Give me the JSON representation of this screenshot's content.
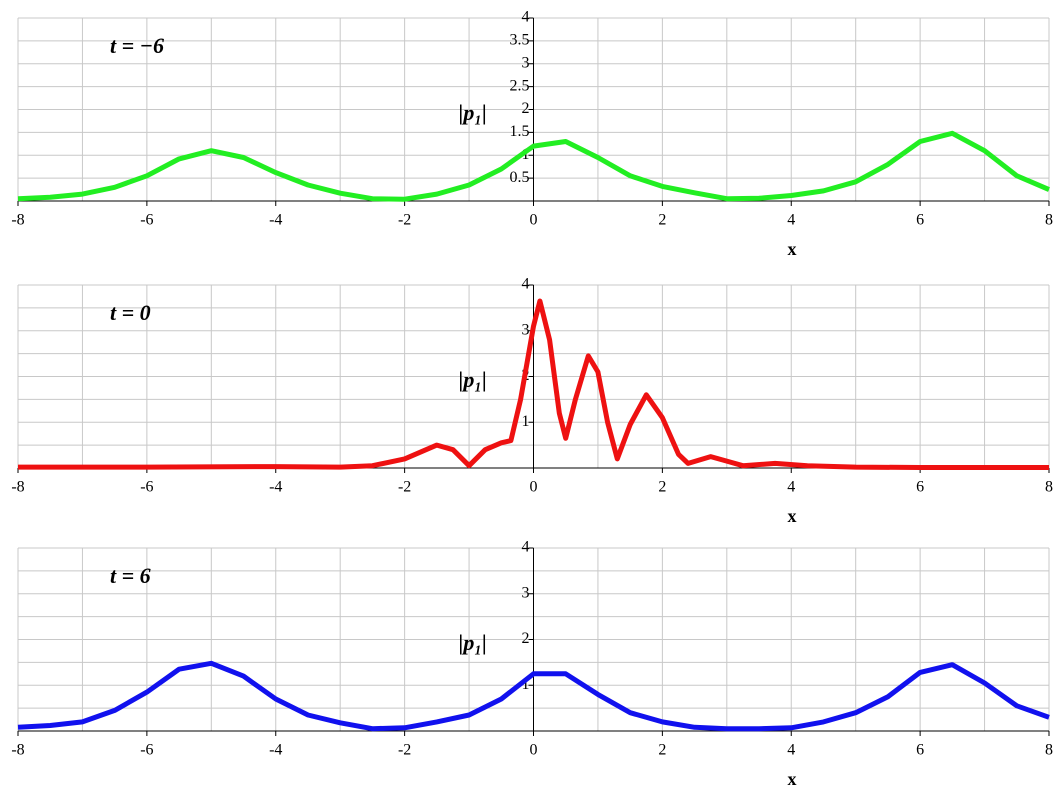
{
  "chart_data": [
    {
      "type": "line",
      "annotation": "t = −6",
      "ylabel": "|p₁|",
      "xlabel": "x",
      "color": "#22ee22",
      "xlim": [
        -8,
        8
      ],
      "ylim": [
        0,
        4
      ],
      "xticks": [
        -8,
        -6,
        -4,
        -2,
        0,
        2,
        4,
        6,
        8
      ],
      "yticks": [
        0.5,
        1,
        1.5,
        2,
        2.5,
        3,
        3.5,
        4
      ],
      "xgrid": [
        -8,
        -7,
        -6,
        -5,
        -4,
        -3,
        -2,
        -1,
        0,
        1,
        2,
        3,
        4,
        5,
        6,
        7,
        8
      ],
      "ygrid": [
        0.5,
        1,
        1.5,
        2,
        2.5,
        3,
        3.5,
        4
      ],
      "x": [
        -8,
        -7.5,
        -7,
        -6.5,
        -6,
        -5.5,
        -5,
        -4.5,
        -4,
        -3.5,
        -3,
        -2.5,
        -2,
        -1.5,
        -1,
        -0.5,
        0,
        0.5,
        1,
        1.5,
        2,
        2.5,
        3,
        3.5,
        4,
        4.5,
        5,
        5.5,
        6,
        6.5,
        7,
        7.5,
        8
      ],
      "values": [
        0.05,
        0.08,
        0.15,
        0.3,
        0.55,
        0.92,
        1.1,
        0.95,
        0.62,
        0.35,
        0.17,
        0.05,
        0.04,
        0.15,
        0.35,
        0.7,
        1.2,
        1.3,
        0.95,
        0.55,
        0.32,
        0.18,
        0.05,
        0.06,
        0.12,
        0.22,
        0.42,
        0.8,
        1.3,
        1.48,
        1.1,
        0.55,
        0.25
      ]
    },
    {
      "type": "line",
      "annotation": "t = 0",
      "ylabel": "|p₁|",
      "xlabel": "x",
      "color": "#ee1111",
      "xlim": [
        -8,
        8
      ],
      "ylim": [
        0,
        4
      ],
      "xticks": [
        -8,
        -6,
        -4,
        -2,
        0,
        2,
        4,
        6,
        8
      ],
      "yticks": [
        1,
        2,
        3,
        4
      ],
      "xgrid": [
        -8,
        -7,
        -6,
        -5,
        -4,
        -3,
        -2,
        -1,
        0,
        1,
        2,
        3,
        4,
        5,
        6,
        7,
        8
      ],
      "ygrid": [
        0.5,
        1,
        1.5,
        2,
        2.5,
        3,
        3.5,
        4
      ],
      "x": [
        -8,
        -6,
        -4,
        -3,
        -2.5,
        -2,
        -1.5,
        -1.25,
        -1,
        -0.75,
        -0.5,
        -0.35,
        -0.2,
        0,
        0.1,
        0.25,
        0.4,
        0.5,
        0.65,
        0.85,
        1,
        1.15,
        1.3,
        1.5,
        1.75,
        2,
        2.25,
        2.4,
        2.75,
        3,
        3.25,
        3.75,
        4.25,
        5,
        6,
        8
      ],
      "values": [
        0.02,
        0.02,
        0.03,
        0.02,
        0.05,
        0.2,
        0.5,
        0.4,
        0.05,
        0.4,
        0.55,
        0.6,
        1.5,
        3.1,
        3.65,
        2.8,
        1.2,
        0.65,
        1.5,
        2.45,
        2.1,
        1.0,
        0.2,
        0.95,
        1.6,
        1.1,
        0.3,
        0.1,
        0.25,
        0.15,
        0.05,
        0.1,
        0.05,
        0.02,
        0.01,
        0.01
      ]
    },
    {
      "type": "line",
      "annotation": "t = 6",
      "ylabel": "|p₁|",
      "xlabel": "x",
      "color": "#1111ee",
      "xlim": [
        -8,
        8
      ],
      "ylim": [
        0,
        4
      ],
      "xticks": [
        -8,
        -6,
        -4,
        -2,
        0,
        2,
        4,
        6,
        8
      ],
      "yticks": [
        1,
        2,
        3,
        4
      ],
      "xgrid": [
        -8,
        -7,
        -6,
        -5,
        -4,
        -3,
        -2,
        -1,
        0,
        1,
        2,
        3,
        4,
        5,
        6,
        7,
        8
      ],
      "ygrid": [
        0.5,
        1,
        1.5,
        2,
        2.5,
        3,
        3.5,
        4
      ],
      "x": [
        -8,
        -7.5,
        -7,
        -6.5,
        -6,
        -5.5,
        -5,
        -4.5,
        -4,
        -3.5,
        -3,
        -2.5,
        -2,
        -1.5,
        -1,
        -0.5,
        0,
        0.5,
        1,
        1.5,
        2,
        2.5,
        3,
        3.5,
        4,
        4.5,
        5,
        5.5,
        6,
        6.5,
        7,
        7.5,
        8
      ],
      "values": [
        0.08,
        0.12,
        0.2,
        0.45,
        0.85,
        1.35,
        1.48,
        1.2,
        0.7,
        0.35,
        0.18,
        0.05,
        0.07,
        0.2,
        0.35,
        0.7,
        1.25,
        1.25,
        0.8,
        0.4,
        0.2,
        0.08,
        0.05,
        0.05,
        0.07,
        0.2,
        0.4,
        0.75,
        1.28,
        1.45,
        1.05,
        0.55,
        0.3
      ]
    }
  ]
}
